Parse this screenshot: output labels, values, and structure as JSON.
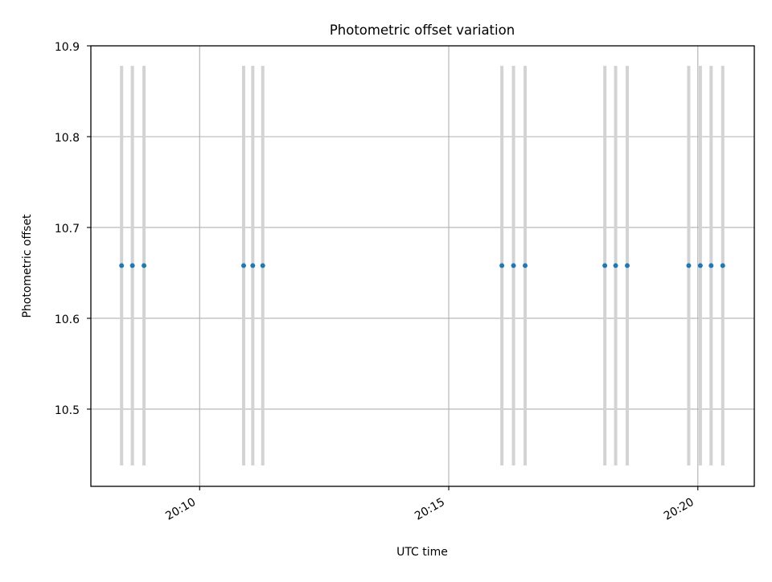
{
  "chart_data": {
    "type": "scatter",
    "title": "Photometric offset variation",
    "xlabel": "UTC time",
    "ylabel": "Photometric offset",
    "xlim": [
      "20:07:49",
      "20:21:08"
    ],
    "ylim": [
      10.415,
      10.9
    ],
    "yticks": [
      10.5,
      10.6,
      10.7,
      10.8,
      10.9
    ],
    "ytick_labels": [
      "10.5",
      "10.6",
      "10.7",
      "10.8",
      "10.9"
    ],
    "xticks": [
      "20:10:00",
      "20:15:00",
      "20:20:00"
    ],
    "xtick_labels": [
      "20:10",
      "20:15",
      "20:20"
    ],
    "grid": true,
    "marker_color": "#1f77b4",
    "errorbar_color": "#d3d3d3",
    "series": [
      {
        "x": [
          "20:08:26",
          "20:08:39",
          "20:08:53",
          "20:10:53",
          "20:11:04",
          "20:11:16",
          "20:16:04",
          "20:16:18",
          "20:16:32",
          "20:18:08",
          "20:18:21",
          "20:18:35",
          "20:19:49",
          "20:20:03",
          "20:20:16",
          "20:20:30"
        ],
        "y": [
          10.658,
          10.658,
          10.658,
          10.658,
          10.658,
          10.658,
          10.658,
          10.658,
          10.658,
          10.658,
          10.658,
          10.658,
          10.658,
          10.658,
          10.658,
          10.658
        ],
        "yerr": 0.22
      }
    ]
  }
}
